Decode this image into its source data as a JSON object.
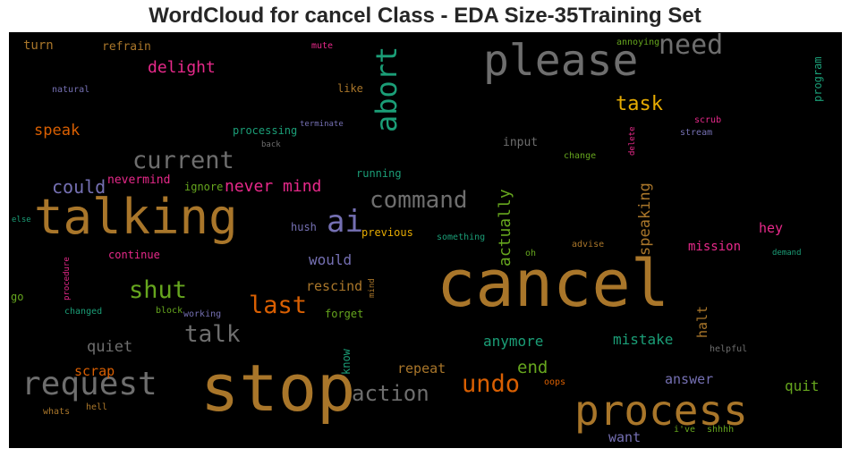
{
  "title": "WordCloud for cancel Class - EDA Size-35Training Set",
  "words": [
    {
      "text": "cancel",
      "color": "#a9762a"
    },
    {
      "text": "stop",
      "color": "#a9762a"
    },
    {
      "text": "talking",
      "color": "#a9762a"
    },
    {
      "text": "please",
      "color": "#6e6e6e"
    },
    {
      "text": "process",
      "color": "#a9762a"
    },
    {
      "text": "request",
      "color": "#6e6e6e"
    },
    {
      "text": "need",
      "color": "#6e6e6e"
    },
    {
      "text": "abort",
      "color": "#1b9e77"
    },
    {
      "text": "current",
      "color": "#6e6e6e"
    },
    {
      "text": "ai",
      "color": "#7570b3"
    },
    {
      "text": "command",
      "color": "#6e6e6e"
    },
    {
      "text": "shut",
      "color": "#66a61e"
    },
    {
      "text": "last",
      "color": "#d95f02"
    },
    {
      "text": "talk",
      "color": "#6e6e6e"
    },
    {
      "text": "undo",
      "color": "#d95f02"
    },
    {
      "text": "action",
      "color": "#6e6e6e"
    },
    {
      "text": "task",
      "color": "#e6ab02"
    },
    {
      "text": "could",
      "color": "#7570b3"
    },
    {
      "text": "never mind",
      "color": "#e7298a"
    },
    {
      "text": "delight",
      "color": "#e7298a"
    },
    {
      "text": "speak",
      "color": "#d95f02"
    },
    {
      "text": "actually",
      "color": "#66a61e"
    },
    {
      "text": "speaking",
      "color": "#a9762a"
    },
    {
      "text": "end",
      "color": "#66a61e"
    },
    {
      "text": "anymore",
      "color": "#1b9e77"
    },
    {
      "text": "mistake",
      "color": "#1b9e77"
    },
    {
      "text": "quit",
      "color": "#66a61e"
    },
    {
      "text": "quiet",
      "color": "#6e6e6e"
    },
    {
      "text": "would",
      "color": "#7570b3"
    },
    {
      "text": "rescind",
      "color": "#a9762a"
    },
    {
      "text": "scrap",
      "color": "#d95f02"
    },
    {
      "text": "repeat",
      "color": "#a9762a"
    },
    {
      "text": "answer",
      "color": "#7570b3"
    },
    {
      "text": "want",
      "color": "#7570b3"
    },
    {
      "text": "hey",
      "color": "#e7298a"
    },
    {
      "text": "mission",
      "color": "#e7298a"
    },
    {
      "text": "halt",
      "color": "#a9762a"
    },
    {
      "text": "turn",
      "color": "#a9762a"
    },
    {
      "text": "refrain",
      "color": "#a9762a"
    },
    {
      "text": "nevermind",
      "color": "#e7298a"
    },
    {
      "text": "ignore",
      "color": "#66a61e"
    },
    {
      "text": "input",
      "color": "#6e6e6e"
    },
    {
      "text": "processing",
      "color": "#1b9e77"
    },
    {
      "text": "running",
      "color": "#1b9e77"
    },
    {
      "text": "continue",
      "color": "#e7298a"
    },
    {
      "text": "forget",
      "color": "#66a61e"
    },
    {
      "text": "hush",
      "color": "#7570b3"
    },
    {
      "text": "previous",
      "color": "#e6ab02"
    },
    {
      "text": "know",
      "color": "#1b9e77"
    },
    {
      "text": "like",
      "color": "#a9762a"
    },
    {
      "text": "program",
      "color": "#1b9e77"
    },
    {
      "text": "natural",
      "color": "#7570b3"
    },
    {
      "text": "mute",
      "color": "#e7298a"
    },
    {
      "text": "annoying",
      "color": "#66a61e"
    },
    {
      "text": "terminate",
      "color": "#7570b3"
    },
    {
      "text": "back",
      "color": "#6e6e6e"
    },
    {
      "text": "scrub",
      "color": "#e7298a"
    },
    {
      "text": "delete",
      "color": "#e7298a"
    },
    {
      "text": "stream",
      "color": "#7570b3"
    },
    {
      "text": "change",
      "color": "#66a61e"
    },
    {
      "text": "else",
      "color": "#1b9e77"
    },
    {
      "text": "something",
      "color": "#1b9e77"
    },
    {
      "text": "advise",
      "color": "#a9762a"
    },
    {
      "text": "oh",
      "color": "#66a61e"
    },
    {
      "text": "demand",
      "color": "#1b9e77"
    },
    {
      "text": "go",
      "color": "#66a61e"
    },
    {
      "text": "procedure",
      "color": "#e7298a"
    },
    {
      "text": "changed",
      "color": "#1b9e77"
    },
    {
      "text": "block",
      "color": "#66a61e"
    },
    {
      "text": "working",
      "color": "#7570b3"
    },
    {
      "text": "mind",
      "color": "#a9762a"
    },
    {
      "text": "helpful",
      "color": "#6e6e6e"
    },
    {
      "text": "oops",
      "color": "#d95f02"
    },
    {
      "text": "whats",
      "color": "#a9762a"
    },
    {
      "text": "hell",
      "color": "#a9762a"
    },
    {
      "text": "i've",
      "color": "#66a61e"
    },
    {
      "text": "shhhh",
      "color": "#66a61e"
    }
  ]
}
